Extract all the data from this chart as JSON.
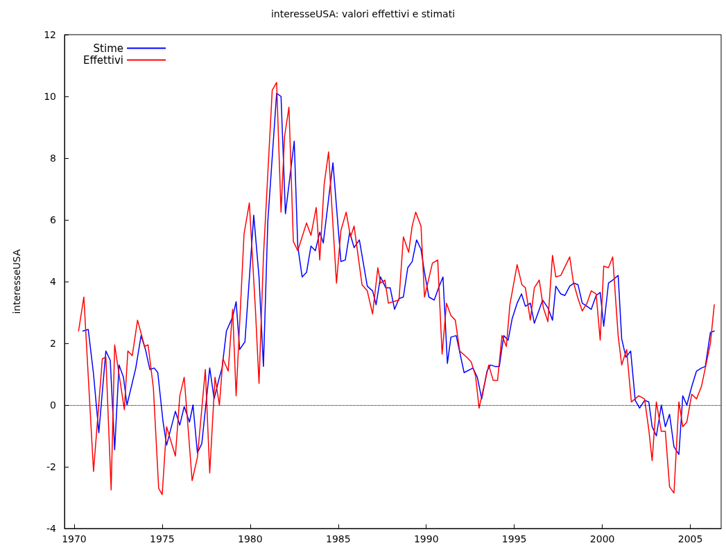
{
  "chart_data": {
    "type": "line",
    "title": "interesseUSA: valori effettivi e stimati",
    "ylabel": "interesseUSA",
    "xlim": [
      1969.45,
      2006.75
    ],
    "xticks": [
      1970,
      1975,
      1980,
      1985,
      1990,
      1995,
      2000,
      2005
    ],
    "ylim": [
      -4,
      12
    ],
    "yticks": [
      -4,
      -2,
      0,
      2,
      4,
      6,
      8,
      10,
      12
    ],
    "grid": false,
    "legend": "top left",
    "marker": "none",
    "line_style": "solid",
    "ref_lines": [
      {
        "axis": "y",
        "value": 0,
        "color": "#000000",
        "line_style": "dotted"
      }
    ],
    "series": [
      {
        "name": "Stime",
        "color": "#0000ff",
        "x": [
          1970.5,
          1970.8,
          1971.1,
          1971.4,
          1971.8,
          1972.05,
          1972.3,
          1972.55,
          1972.8,
          1973.0,
          1973.5,
          1973.8,
          1974.05,
          1974.3,
          1974.55,
          1974.75,
          1975.05,
          1975.25,
          1975.75,
          1976.0,
          1976.25,
          1976.55,
          1976.75,
          1977.0,
          1977.25,
          1977.7,
          1977.95,
          1978.25,
          1978.4,
          1978.65,
          1979.0,
          1979.2,
          1979.4,
          1979.7,
          1980.2,
          1980.5,
          1980.75,
          1981.0,
          1981.5,
          1981.75,
          1982.0,
          1982.5,
          1982.7,
          1982.95,
          1983.2,
          1983.45,
          1983.7,
          1983.95,
          1984.15,
          1984.7,
          1985.15,
          1985.4,
          1985.65,
          1985.9,
          1986.2,
          1986.65,
          1986.95,
          1987.15,
          1987.4,
          1987.7,
          1987.95,
          1988.2,
          1988.45,
          1988.7,
          1988.95,
          1989.2,
          1989.45,
          1989.7,
          1989.9,
          1990.15,
          1990.45,
          1990.7,
          1990.95,
          1991.2,
          1991.4,
          1991.7,
          1992.15,
          1992.65,
          1992.9,
          1993.15,
          1993.45,
          1993.65,
          1993.9,
          1994.15,
          1994.4,
          1994.65,
          1994.88,
          1995.16,
          1995.41,
          1995.63,
          1995.91,
          1996.14,
          1996.42,
          1996.61,
          1996.91,
          1997.17,
          1997.36,
          1997.64,
          1997.87,
          1998.15,
          1998.39,
          1998.62,
          1998.86,
          1999.13,
          1999.37,
          1999.65,
          1999.88,
          2000.08,
          2000.35,
          2000.59,
          2000.9,
          2001.1,
          2001.34,
          2001.61,
          2001.87,
          2002.12,
          2002.4,
          2002.64,
          2002.83,
          2003.07,
          2003.35,
          2003.58,
          2003.82,
          2004.07,
          2004.35,
          2004.57,
          2004.8,
          2005.08,
          2005.35,
          2005.63,
          2005.85,
          2006.14,
          2006.36
        ],
        "values": [
          2.4,
          2.45,
          1.0,
          -0.9,
          1.75,
          1.45,
          -1.45,
          1.3,
          0.9,
          0.0,
          1.2,
          2.25,
          1.8,
          1.15,
          1.2,
          1.05,
          -0.55,
          -1.3,
          -0.2,
          -0.65,
          -0.05,
          -0.55,
          0.0,
          -1.55,
          -1.25,
          1.2,
          0.2,
          0.9,
          1.2,
          2.4,
          2.85,
          3.35,
          1.8,
          2.05,
          6.15,
          4.15,
          1.25,
          5.95,
          10.1,
          10.0,
          6.2,
          8.55,
          5.15,
          4.15,
          4.3,
          5.15,
          5.0,
          5.6,
          5.25,
          7.85,
          4.65,
          4.7,
          5.6,
          5.1,
          5.35,
          3.85,
          3.7,
          3.25,
          4.15,
          3.8,
          3.8,
          3.1,
          3.45,
          3.5,
          4.45,
          4.65,
          5.35,
          5.05,
          4.3,
          3.5,
          3.4,
          3.8,
          4.15,
          1.35,
          2.2,
          2.25,
          1.05,
          1.2,
          0.9,
          0.2,
          1.1,
          1.3,
          1.25,
          1.25,
          2.25,
          2.1,
          2.8,
          3.3,
          3.6,
          3.2,
          3.3,
          2.65,
          3.1,
          3.4,
          3.15,
          2.75,
          3.85,
          3.6,
          3.55,
          3.85,
          3.95,
          3.9,
          3.3,
          3.2,
          3.1,
          3.55,
          3.65,
          2.55,
          3.95,
          4.05,
          4.2,
          2.15,
          1.55,
          1.75,
          0.15,
          -0.1,
          0.15,
          0.1,
          -0.7,
          -1.0,
          0.0,
          -0.7,
          -0.3,
          -1.35,
          -1.6,
          0.3,
          0.0,
          0.6,
          1.1,
          1.2,
          1.25,
          2.35,
          2.4
        ]
      },
      {
        "name": "Effettivi",
        "color": "#ff0000",
        "x": [
          1970.25,
          1970.55,
          1971.1,
          1971.6,
          1971.8,
          1972.1,
          1972.3,
          1972.85,
          1973.05,
          1973.3,
          1973.6,
          1974.0,
          1974.2,
          1974.5,
          1974.8,
          1975.0,
          1975.25,
          1975.75,
          1976.0,
          1976.25,
          1976.7,
          1977.0,
          1977.45,
          1977.7,
          1978.0,
          1978.25,
          1978.45,
          1978.75,
          1979.0,
          1979.2,
          1979.65,
          1979.95,
          1980.3,
          1980.5,
          1980.75,
          1981.25,
          1981.5,
          1981.75,
          1981.95,
          1982.2,
          1982.45,
          1982.7,
          1983.2,
          1983.45,
          1983.75,
          1983.95,
          1984.2,
          1984.45,
          1984.9,
          1985.15,
          1985.45,
          1985.7,
          1985.9,
          1986.35,
          1986.65,
          1986.95,
          1987.25,
          1987.4,
          1987.65,
          1987.85,
          1988.1,
          1988.45,
          1988.7,
          1989.0,
          1989.2,
          1989.4,
          1989.7,
          1989.9,
          1990.35,
          1990.65,
          1990.9,
          1991.15,
          1991.4,
          1991.65,
          1991.9,
          1992.3,
          1992.55,
          1992.8,
          1993.0,
          1993.55,
          1993.8,
          1994.05,
          1994.3,
          1994.55,
          1994.75,
          1995.16,
          1995.43,
          1995.63,
          1995.91,
          1996.14,
          1996.42,
          1996.65,
          1996.91,
          1997.17,
          1997.36,
          1997.64,
          1998.15,
          1998.35,
          1998.62,
          1998.86,
          1999.13,
          1999.37,
          1999.65,
          1999.88,
          2000.08,
          2000.35,
          2000.59,
          2000.9,
          2001.1,
          2001.38,
          2001.65,
          2002.07,
          2002.4,
          2002.64,
          2002.83,
          2003.07,
          2003.35,
          2003.58,
          2003.82,
          2004.07,
          2004.35,
          2004.57,
          2004.8,
          2005.08,
          2005.35,
          2005.63,
          2005.85,
          2006.14,
          2006.36
        ],
        "values": [
          2.4,
          3.5,
          -2.15,
          1.5,
          1.55,
          -2.75,
          1.95,
          -0.15,
          1.75,
          1.6,
          2.75,
          1.9,
          1.95,
          0.55,
          -2.7,
          -2.9,
          -0.7,
          -1.65,
          0.3,
          0.9,
          -2.45,
          -1.7,
          1.15,
          -2.2,
          0.9,
          0.0,
          1.5,
          1.1,
          3.1,
          0.3,
          5.55,
          6.55,
          3.05,
          0.7,
          4.8,
          10.2,
          10.45,
          6.25,
          8.7,
          9.65,
          5.3,
          5.0,
          5.9,
          5.5,
          6.4,
          4.7,
          7.15,
          8.2,
          3.95,
          5.65,
          6.25,
          5.45,
          5.8,
          3.9,
          3.7,
          2.95,
          4.45,
          3.95,
          4.05,
          3.3,
          3.35,
          3.4,
          5.45,
          4.95,
          5.8,
          6.25,
          5.8,
          3.5,
          4.6,
          4.7,
          1.65,
          3.3,
          2.9,
          2.75,
          1.75,
          1.55,
          1.4,
          0.95,
          -0.1,
          1.3,
          0.8,
          0.8,
          2.25,
          1.9,
          3.25,
          4.55,
          3.9,
          3.8,
          2.75,
          3.8,
          4.05,
          3.15,
          2.7,
          4.85,
          4.15,
          4.2,
          4.8,
          4.0,
          3.45,
          3.05,
          3.3,
          3.7,
          3.6,
          2.1,
          4.5,
          4.45,
          4.8,
          2.25,
          1.3,
          1.8,
          0.1,
          0.3,
          0.2,
          -0.8,
          -1.8,
          0.1,
          -0.85,
          -0.85,
          -2.65,
          -2.85,
          0.1,
          -0.7,
          -0.55,
          0.35,
          0.2,
          0.6,
          1.2,
          2.0,
          3.25
        ]
      }
    ]
  }
}
